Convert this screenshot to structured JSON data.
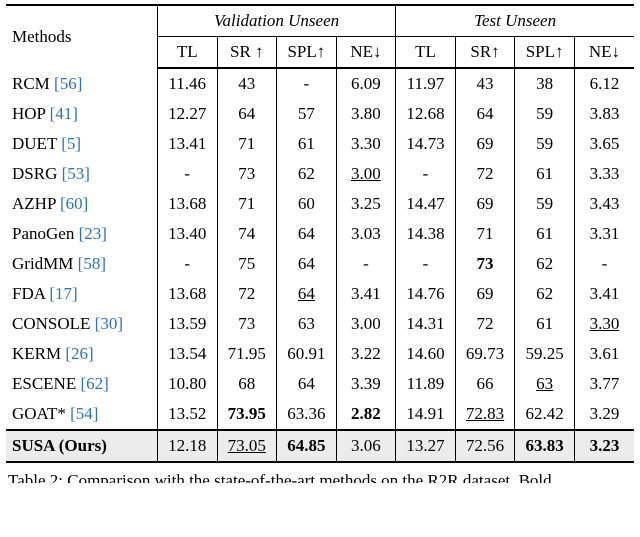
{
  "table": {
    "methods_label": "Methods",
    "group1": "Validation Unseen",
    "group2": "Test Unseen",
    "subheaders": [
      "TL",
      "SR ↑",
      "SPL↑",
      "NE↓",
      "TL",
      "SR↑",
      "SPL↑",
      "NE↓"
    ],
    "rows": [
      {
        "method": "RCM",
        "cite": "[56]",
        "vals": [
          "11.46",
          "43",
          "-",
          "6.09",
          "11.97",
          "43",
          "38",
          "6.12"
        ],
        "fmt": [
          "",
          "",
          "",
          "",
          "",
          "",
          "",
          ""
        ]
      },
      {
        "method": "HOP",
        "cite": "[41]",
        "vals": [
          "12.27",
          "64",
          "57",
          "3.80",
          "12.68",
          "64",
          "59",
          "3.83"
        ],
        "fmt": [
          "",
          "",
          "",
          "",
          "",
          "",
          "",
          ""
        ]
      },
      {
        "method": "DUET",
        "cite": "[5]",
        "vals": [
          "13.41",
          "71",
          "61",
          "3.30",
          "14.73",
          "69",
          "59",
          "3.65"
        ],
        "fmt": [
          "",
          "",
          "",
          "",
          "",
          "",
          "",
          ""
        ]
      },
      {
        "method": "DSRG",
        "cite": "[53]",
        "vals": [
          "-",
          "73",
          "62",
          "3.00",
          "-",
          "72",
          "61",
          "3.33"
        ],
        "fmt": [
          "",
          "",
          "",
          "u",
          "",
          "",
          "",
          ""
        ]
      },
      {
        "method": "AZHP",
        "cite": "[60]",
        "vals": [
          "13.68",
          "71",
          "60",
          "3.25",
          "14.47",
          "69",
          "59",
          "3.43"
        ],
        "fmt": [
          "",
          "",
          "",
          "",
          "",
          "",
          "",
          ""
        ]
      },
      {
        "method": "PanoGen",
        "cite": "[23]",
        "vals": [
          "13.40",
          "74",
          "64",
          "3.03",
          "14.38",
          "71",
          "61",
          "3.31"
        ],
        "fmt": [
          "",
          "",
          "",
          "",
          "",
          "",
          "",
          ""
        ]
      },
      {
        "method": "GridMM",
        "cite": "[58]",
        "vals": [
          "-",
          "75",
          "64",
          "-",
          "-",
          "73",
          "62",
          "-"
        ],
        "fmt": [
          "",
          "",
          "",
          "",
          "",
          "b",
          "",
          ""
        ]
      },
      {
        "method": "FDA",
        "cite": "[17]",
        "vals": [
          "13.68",
          "72",
          "64",
          "3.41",
          "14.76",
          "69",
          "62",
          "3.41"
        ],
        "fmt": [
          "",
          "",
          "u",
          "",
          "",
          "",
          "",
          ""
        ]
      },
      {
        "method": "CONSOLE",
        "cite": "[30]",
        "vals": [
          "13.59",
          "73",
          "63",
          "3.00",
          "14.31",
          "72",
          "61",
          "3.30"
        ],
        "fmt": [
          "",
          "",
          "",
          "",
          "",
          "",
          "",
          "u"
        ]
      },
      {
        "method": "KERM",
        "cite": "[26]",
        "vals": [
          "13.54",
          "71.95",
          "60.91",
          "3.22",
          "14.60",
          "69.73",
          "59.25",
          "3.61"
        ],
        "fmt": [
          "",
          "",
          "",
          "",
          "",
          "",
          "",
          ""
        ]
      },
      {
        "method": "ESCENE",
        "cite": "[62]",
        "vals": [
          "10.80",
          "68",
          "64",
          "3.39",
          "11.89",
          "66",
          "63",
          "3.77"
        ],
        "fmt": [
          "",
          "",
          "",
          "",
          "",
          "",
          "u",
          ""
        ]
      },
      {
        "method": "GOAT*",
        "cite": "[54]",
        "vals": [
          "13.52",
          "73.95",
          "63.36",
          "2.82",
          "14.91",
          "72.83",
          "62.42",
          "3.29"
        ],
        "fmt": [
          "",
          "b",
          "",
          "b",
          "",
          "u",
          "",
          ""
        ]
      },
      {
        "method": "SUSA (Ours)",
        "cite": "",
        "ours": true,
        "vals": [
          "12.18",
          "73.05",
          "64.85",
          "3.06",
          "13.27",
          "72.56",
          "63.83",
          "3.23"
        ],
        "fmt": [
          "",
          "u",
          "b",
          "",
          "",
          "",
          "b",
          "b"
        ]
      }
    ],
    "caption": "Table 2: Comparison with the state-of-the-art methods on the R2R dataset. Bold"
  }
}
